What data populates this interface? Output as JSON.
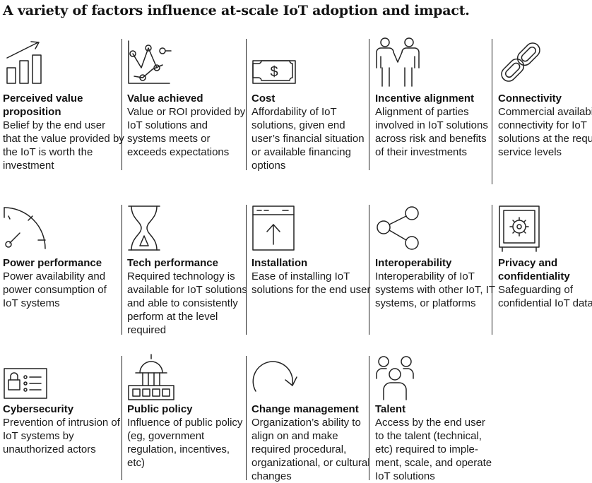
{
  "title": "A variety of factors influence at-scale IoT adoption and impact.",
  "factors": [
    {
      "title": "Perceived value proposition",
      "desc": "Belief by the end user that the value provided by the IoT is worth the investment",
      "icon": "bar-chart-growth-icon"
    },
    {
      "title": "Value achieved",
      "desc": "Value or ROI provided by IoT solutions and systems meets or exceeds expectations",
      "icon": "scatter-plot-icon"
    },
    {
      "title": "Cost",
      "desc": "Affordability of IoT solutions, given end user’s financial situation or available financing options",
      "icon": "dollar-bill-icon"
    },
    {
      "title": "Incentive alignment",
      "desc": "Alignment of parties involved in IoT solutions across risk and benefits of their investments",
      "icon": "people-holding-hands-icon"
    },
    {
      "title": "Connectivity",
      "desc": "Commercial availability of connectivity for IoT solutions at the required service levels",
      "icon": "chain-link-icon"
    },
    {
      "title": "Power performance",
      "desc": "Power availability and power consumption of IoT systems",
      "icon": "power-gauge-icon"
    },
    {
      "title": "Tech performance",
      "desc": "Required technology is available for IoT solutions and able to consistently perform at the level required",
      "icon": "hourglass-icon"
    },
    {
      "title": "Installation",
      "desc": "Ease of installing IoT solutions for the end user",
      "icon": "upload-window-icon"
    },
    {
      "title": "Interoperability",
      "desc": "Interoperability of IoT systems with other IoT, IT systems, or platforms",
      "icon": "share-nodes-icon"
    },
    {
      "title": "Privacy and confidentiality",
      "desc": "Safeguarding of confidential IoT data",
      "icon": "safe-vault-icon"
    },
    {
      "title": "Cybersecurity",
      "desc": "Prevention of intrusion of IoT systems by unauthorized actors",
      "icon": "locked-screen-icon"
    },
    {
      "title": "Public policy",
      "desc": "Influence of public policy (eg, government regulation, incentives, etc)",
      "icon": "government-building-icon"
    },
    {
      "title": "Change management",
      "desc": "Organization’s ability to align on and make required procedural, organizational, or cultural changes",
      "icon": "circular-arrow-icon"
    },
    {
      "title": "Talent",
      "desc": "Access by the end user to the talent (technical, etc) required to imple­ment, scale, and operate IoT solutions",
      "icon": "team-people-icon"
    }
  ]
}
